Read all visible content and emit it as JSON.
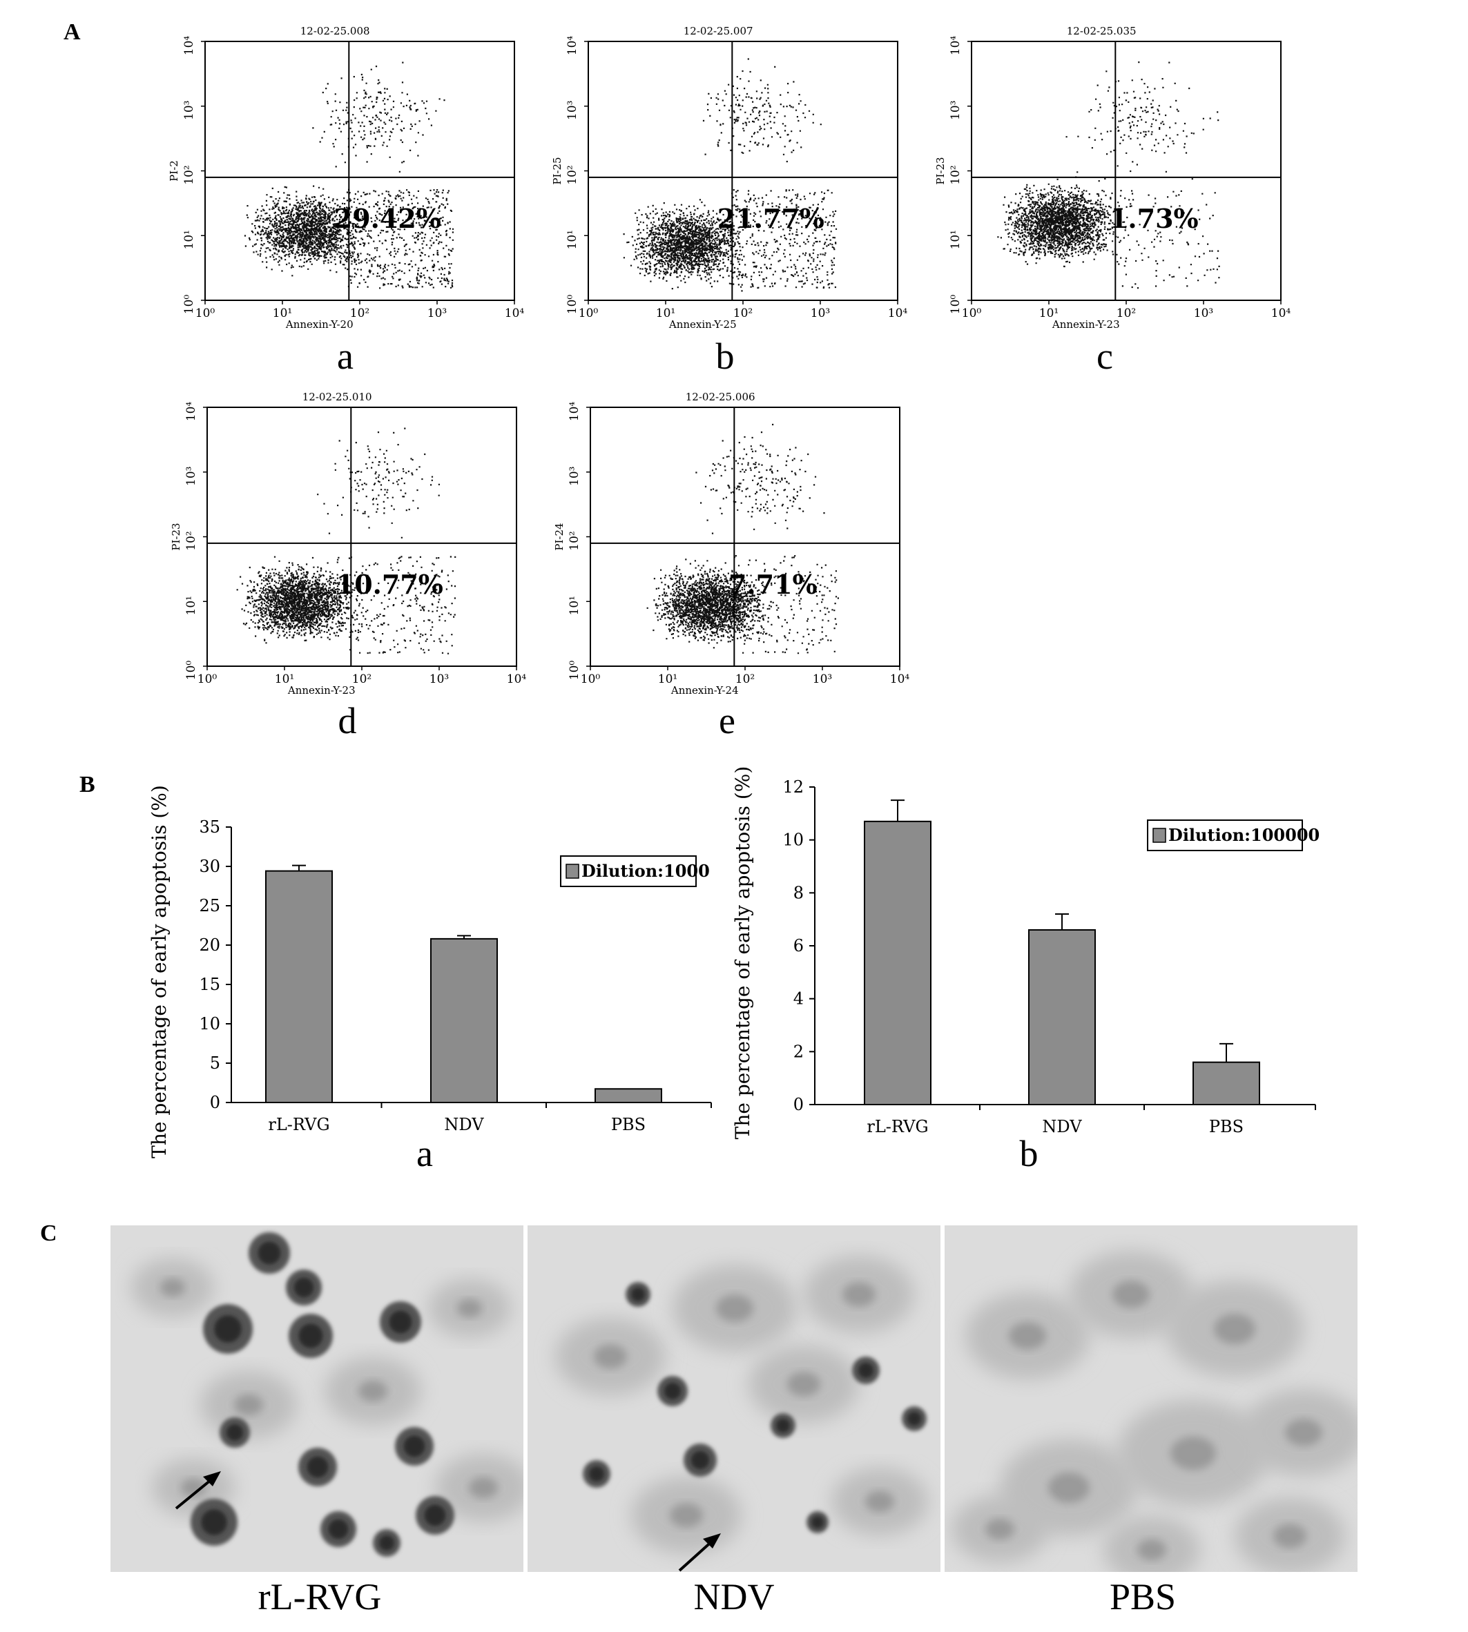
{
  "panels": {
    "A": "A",
    "B": "B",
    "C": "C"
  },
  "flow_plots": [
    {
      "title": "12-02-25.008",
      "ylabel": "PI-2",
      "xlabel": "Annexin-Y-20",
      "percent": "29.42%",
      "sublabel": "a",
      "x_ticks": [
        "10⁰",
        "10¹",
        "10²",
        "10³",
        "10⁴"
      ],
      "y_ticks": [
        "10⁰",
        "10¹",
        "10²",
        "10³",
        "10⁴"
      ]
    },
    {
      "title": "12-02-25.007",
      "ylabel": "PI-25",
      "xlabel": "Annexin-Y-25",
      "percent": "21.77%",
      "sublabel": "b",
      "x_ticks": [
        "10⁰",
        "10¹",
        "10²",
        "10³",
        "10⁴"
      ],
      "y_ticks": [
        "10⁰",
        "10¹",
        "10²",
        "10³",
        "10⁴"
      ]
    },
    {
      "title": "12-02-25.035",
      "ylabel": "PI-23",
      "xlabel": "Annexin-Y-23",
      "percent": "1.73%",
      "sublabel": "c",
      "x_ticks": [
        "10⁰",
        "10¹",
        "10²",
        "10³",
        "10⁴"
      ],
      "y_ticks": [
        "10⁰",
        "10¹",
        "10²",
        "10³",
        "10⁴"
      ]
    },
    {
      "title": "12-02-25.010",
      "ylabel": "PI-23",
      "xlabel": "Annexin-Y-23",
      "percent": "10.77%",
      "sublabel": "d",
      "x_ticks": [
        "10⁰",
        "10¹",
        "10²",
        "10³",
        "10⁴"
      ],
      "y_ticks": [
        "10⁰",
        "10¹",
        "10²",
        "10³",
        "10⁴"
      ]
    },
    {
      "title": "12-02-25.006",
      "ylabel": "PI-24",
      "xlabel": "Annexin-Y-24",
      "percent": "7.71%",
      "sublabel": "e",
      "x_ticks": [
        "10⁰",
        "10¹",
        "10²",
        "10³",
        "10⁴"
      ],
      "y_ticks": [
        "10⁰",
        "10¹",
        "10²",
        "10³",
        "10⁴"
      ]
    }
  ],
  "chart_data": [
    {
      "type": "bar",
      "categories": [
        "rL-RVG",
        "NDV",
        "PBS"
      ],
      "values": [
        29.42,
        20.8,
        1.73
      ],
      "errors": [
        0.7,
        0.4,
        0.0
      ],
      "ylim": [
        0,
        35
      ],
      "yticks": [
        0,
        5,
        10,
        15,
        20,
        25,
        30,
        35
      ],
      "ylabel": "The percentage of early apoptosis (%)",
      "legend": "Dilution:1000",
      "legend_position": "top-right",
      "sublabel": "a",
      "bar_color": "#8c8c8c"
    },
    {
      "type": "bar",
      "categories": [
        "rL-RVG",
        "NDV",
        "PBS"
      ],
      "values": [
        10.7,
        6.6,
        1.6
      ],
      "errors": [
        0.8,
        0.6,
        0.7
      ],
      "ylim": [
        0,
        12
      ],
      "yticks": [
        0,
        2,
        4,
        6,
        8,
        10,
        12
      ],
      "ylabel": "The percentage of early apoptosis (%)",
      "legend": "Dilution:100000",
      "legend_position": "top-right",
      "sublabel": "b",
      "bar_color": "#8c8c8c"
    }
  ],
  "micrographs": [
    {
      "label": "rL-RVG"
    },
    {
      "label": "NDV"
    },
    {
      "label": "PBS"
    }
  ]
}
